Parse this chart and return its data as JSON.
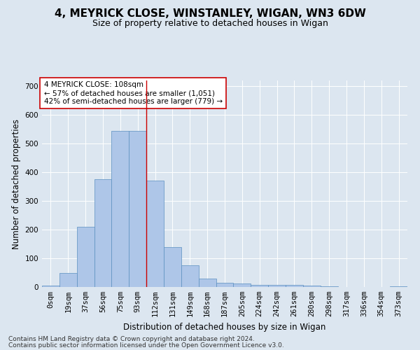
{
  "title1": "4, MEYRICK CLOSE, WINSTANLEY, WIGAN, WN3 6DW",
  "title2": "Size of property relative to detached houses in Wigan",
  "xlabel": "Distribution of detached houses by size in Wigan",
  "ylabel": "Number of detached properties",
  "footer1": "Contains HM Land Registry data © Crown copyright and database right 2024.",
  "footer2": "Contains public sector information licensed under the Open Government Licence v3.0.",
  "annotation_line1": "4 MEYRICK CLOSE: 108sqm",
  "annotation_line2": "← 57% of detached houses are smaller (1,051)",
  "annotation_line3": "42% of semi-detached houses are larger (779) →",
  "bar_labels": [
    "0sqm",
    "19sqm",
    "37sqm",
    "56sqm",
    "75sqm",
    "93sqm",
    "112sqm",
    "131sqm",
    "149sqm",
    "168sqm",
    "187sqm",
    "205sqm",
    "224sqm",
    "242sqm",
    "261sqm",
    "280sqm",
    "298sqm",
    "317sqm",
    "336sqm",
    "354sqm",
    "373sqm"
  ],
  "bar_values": [
    5,
    50,
    210,
    375,
    545,
    545,
    370,
    140,
    75,
    30,
    15,
    12,
    8,
    7,
    7,
    5,
    2,
    0,
    0,
    0,
    2
  ],
  "bar_color": "#aec6e8",
  "bar_edge_color": "#5a8fc0",
  "vline_color": "#cc0000",
  "vline_position": 5.5,
  "ylim": [
    0,
    720
  ],
  "yticks": [
    0,
    100,
    200,
    300,
    400,
    500,
    600,
    700
  ],
  "background_color": "#dce6f0",
  "grid_color": "#ffffff",
  "annotation_box_color": "#ffffff",
  "annotation_box_edge": "#cc0000",
  "title1_fontsize": 11,
  "title2_fontsize": 9,
  "axis_label_fontsize": 8.5,
  "tick_fontsize": 7.5,
  "annotation_fontsize": 7.5,
  "footer_fontsize": 6.5
}
